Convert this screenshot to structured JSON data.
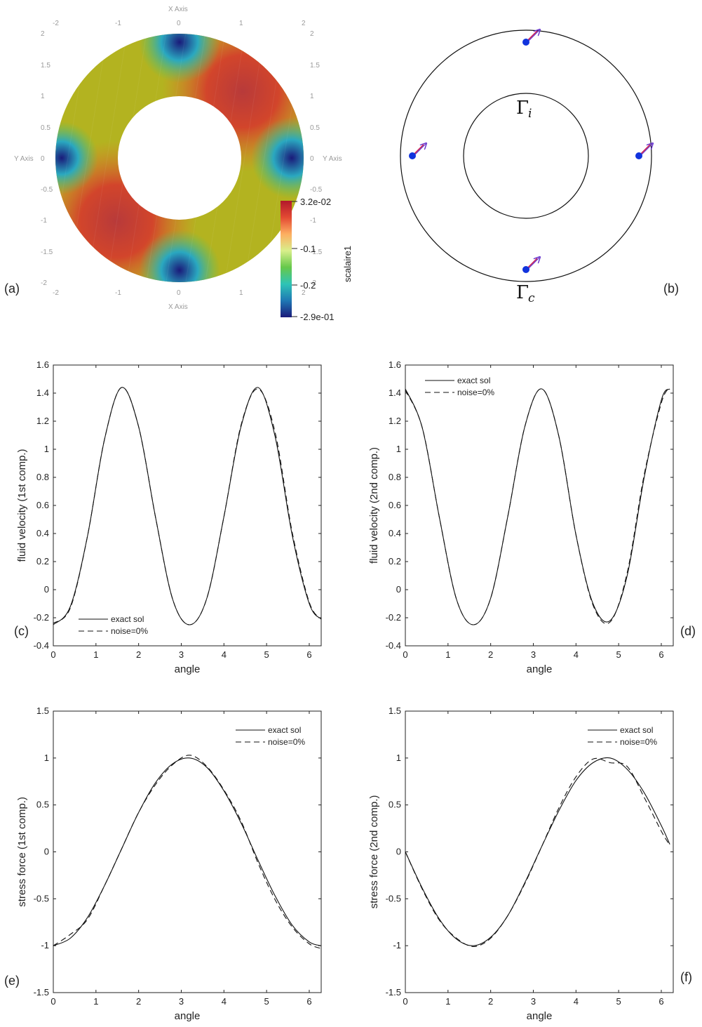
{
  "panel_labels": [
    "(a)",
    "(b)",
    "(c)",
    "(d)",
    "(e)",
    "(f)"
  ],
  "panel_a": {
    "axis_names": {
      "x": "X Axis",
      "y": "Y Axis"
    },
    "ticks": [
      "-2",
      "-1.5",
      "-1",
      "-0.5",
      "0",
      "0.5",
      "1",
      "1.5",
      "2"
    ],
    "x_ticks": [
      "-2",
      "-1",
      "0",
      "1",
      "2"
    ],
    "colorbar": {
      "title": "scalaire1",
      "max_label": "3.2e-02",
      "mid1_label": "-0.1",
      "mid2_label": "-0.2",
      "min_label": "-2.9e-01",
      "colors": [
        "#b2182b",
        "#e34a33",
        "#fdae61",
        "#d9ef8b",
        "#66c84a",
        "#2ec4b6",
        "#1f78b4",
        "#1a1a7a"
      ]
    }
  },
  "panel_b": {
    "inner_label": {
      "base": "Γ",
      "sub": "i"
    },
    "outer_label": {
      "base": "Γ",
      "sub": "c"
    },
    "point_color": "#1133dd",
    "arrow_colors": [
      "#cc2255",
      "#6633cc"
    ]
  },
  "chart_data": [
    {
      "panel": "(c)",
      "type": "line",
      "xlabel": "angle",
      "ylabel": "fluid velocity (1st comp.)",
      "xlim": [
        0,
        6.28
      ],
      "ylim": [
        -0.4,
        1.6
      ],
      "xticks": [
        "0",
        "1",
        "2",
        "3",
        "4",
        "5",
        "6"
      ],
      "yticks": [
        "-0.4",
        "-0.2",
        "0",
        "0.2",
        "0.4",
        "0.6",
        "0.8",
        "1",
        "1.2",
        "1.4",
        "1.6"
      ],
      "legend": "bottom-left",
      "x": [
        0,
        0.4,
        0.8,
        1.2,
        1.6,
        2.0,
        2.4,
        2.8,
        3.2,
        3.6,
        4.0,
        4.4,
        4.8,
        5.2,
        5.6,
        6.0,
        6.28
      ],
      "series": [
        {
          "name": "exact sol",
          "style": "solid",
          "values": [
            -0.25,
            -0.12,
            0.38,
            1.07,
            1.44,
            1.16,
            0.51,
            -0.07,
            -0.25,
            -0.06,
            0.52,
            1.16,
            1.44,
            1.09,
            0.39,
            -0.1,
            -0.21
          ]
        },
        {
          "name": "noise=0%",
          "style": "dashed",
          "values": [
            -0.24,
            -0.13,
            0.38,
            1.07,
            1.44,
            1.16,
            0.51,
            -0.07,
            -0.25,
            -0.06,
            0.52,
            1.17,
            1.43,
            1.12,
            0.41,
            -0.09,
            -0.21
          ]
        }
      ]
    },
    {
      "panel": "(d)",
      "type": "line",
      "xlabel": "angle",
      "ylabel": "fluid velocity (2nd comp.)",
      "xlim": [
        0,
        6.28
      ],
      "ylim": [
        -0.4,
        1.6
      ],
      "xticks": [
        "0",
        "1",
        "2",
        "3",
        "4",
        "5",
        "6"
      ],
      "yticks": [
        "-0.4",
        "-0.2",
        "0",
        "0.2",
        "0.4",
        "0.6",
        "0.8",
        "1",
        "1.2",
        "1.4",
        "1.6"
      ],
      "legend": "top-left",
      "x": [
        0,
        0.4,
        0.8,
        1.2,
        1.6,
        2.0,
        2.4,
        2.8,
        3.2,
        3.6,
        4.0,
        4.4,
        4.8,
        5.2,
        5.6,
        6.0,
        6.2
      ],
      "series": [
        {
          "name": "exact sol",
          "style": "solid",
          "values": [
            1.43,
            1.15,
            0.51,
            -0.07,
            -0.25,
            -0.06,
            0.52,
            1.16,
            1.43,
            1.09,
            0.39,
            -0.1,
            -0.22,
            0.1,
            0.8,
            1.35,
            1.43
          ]
        },
        {
          "name": "noise=0%",
          "style": "dashed",
          "values": [
            1.42,
            1.15,
            0.51,
            -0.07,
            -0.25,
            -0.06,
            0.52,
            1.16,
            1.43,
            1.09,
            0.39,
            -0.11,
            -0.23,
            0.12,
            0.82,
            1.33,
            1.44
          ]
        }
      ]
    },
    {
      "panel": "(e)",
      "type": "line",
      "xlabel": "angle",
      "ylabel": "stress force (1st comp.)",
      "xlim": [
        0,
        6.28
      ],
      "ylim": [
        -1.5,
        1.5
      ],
      "xticks": [
        "0",
        "1",
        "2",
        "3",
        "4",
        "5",
        "6"
      ],
      "yticks": [
        "-1.5",
        "-1",
        "-0.5",
        "0",
        "0.5",
        "1",
        "1.5"
      ],
      "legend": "top-right",
      "x": [
        0,
        0.4,
        0.8,
        1.2,
        1.6,
        2.0,
        2.4,
        2.8,
        3.2,
        3.6,
        4.0,
        4.4,
        4.8,
        5.2,
        5.6,
        6.0,
        6.28
      ],
      "series": [
        {
          "name": "exact sol",
          "style": "solid",
          "values": [
            -1.0,
            -0.92,
            -0.7,
            -0.36,
            0.03,
            0.42,
            0.74,
            0.94,
            1.0,
            0.9,
            0.65,
            0.31,
            -0.09,
            -0.47,
            -0.78,
            -0.96,
            -1.0
          ]
        },
        {
          "name": "noise=0%",
          "style": "dashed",
          "values": [
            -1.0,
            -0.88,
            -0.72,
            -0.36,
            0.03,
            0.42,
            0.72,
            0.93,
            1.03,
            0.91,
            0.66,
            0.33,
            -0.12,
            -0.51,
            -0.8,
            -0.98,
            -1.03
          ]
        }
      ]
    },
    {
      "panel": "(f)",
      "type": "line",
      "xlabel": "angle",
      "ylabel": "stress force (2nd comp.)",
      "xlim": [
        0,
        6.28
      ],
      "ylim": [
        -1.5,
        1.5
      ],
      "xticks": [
        "0",
        "1",
        "2",
        "3",
        "4",
        "5",
        "6"
      ],
      "yticks": [
        "-1.5",
        "-1",
        "-0.5",
        "0",
        "0.5",
        "1",
        "1.5"
      ],
      "legend": "top-right",
      "x": [
        0,
        0.4,
        0.8,
        1.2,
        1.6,
        2.0,
        2.4,
        2.8,
        3.2,
        3.6,
        4.0,
        4.4,
        4.8,
        5.2,
        5.6,
        6.0,
        6.2
      ],
      "series": [
        {
          "name": "exact sol",
          "style": "solid",
          "values": [
            0.0,
            -0.39,
            -0.72,
            -0.93,
            -1.0,
            -0.91,
            -0.68,
            -0.33,
            0.06,
            0.44,
            0.76,
            0.95,
            1.0,
            0.88,
            0.63,
            0.28,
            0.08
          ]
        },
        {
          "name": "noise=0%",
          "style": "dashed",
          "values": [
            0.0,
            -0.4,
            -0.73,
            -0.92,
            -1.01,
            -0.92,
            -0.68,
            -0.34,
            0.06,
            0.47,
            0.8,
            0.99,
            0.95,
            0.91,
            0.58,
            0.22,
            0.07
          ]
        }
      ]
    }
  ]
}
